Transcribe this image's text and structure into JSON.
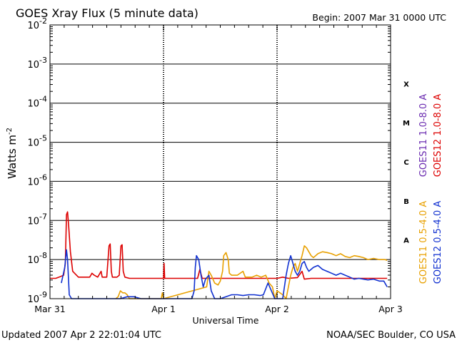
{
  "chart_data": {
    "type": "line",
    "title": "GOES Xray Flux (5 minute data)",
    "begin_label": "Begin:  2007 Mar 31 0000 UTC",
    "xlabel": "Universal Time",
    "ylabel": "Watts m",
    "ylabel_exp": "-2",
    "y_scale": "log",
    "ylim_exp": [
      -9,
      -2
    ],
    "y_ticks": [
      {
        "exp": "-2"
      },
      {
        "exp": "-3"
      },
      {
        "exp": "-4"
      },
      {
        "exp": "-5"
      },
      {
        "exp": "-6"
      },
      {
        "exp": "-7"
      },
      {
        "exp": "-8"
      },
      {
        "exp": "-9"
      }
    ],
    "x_ticks": [
      "Mar 31",
      "Apr 1",
      "Apr 2",
      "Apr 3"
    ],
    "xlim_days": [
      0,
      3
    ],
    "flare_classes": [
      "X",
      "M",
      "C",
      "B",
      "A"
    ],
    "updated_label": "Updated 2007 Apr  2 22:01:04 UTC",
    "source_label": "NOAA/SEC Boulder, CO USA",
    "colors": {
      "goes11_long": "#6a2bb0",
      "goes12_long": "#dd0000",
      "goes11_short": "#e8a000",
      "goes12_short": "#1030d0",
      "grid": "#000000"
    },
    "series": [
      {
        "name": "GOES11 1.0-8.0 A",
        "color": "#6a2bb0",
        "points": []
      },
      {
        "name": "GOES12 1.0-8.0 A",
        "color": "#dd0000",
        "points": [
          [
            0.0,
            -8.48
          ],
          [
            0.05,
            -8.48
          ],
          [
            0.08,
            -8.45
          ],
          [
            0.12,
            -8.4
          ],
          [
            0.135,
            -8.1
          ],
          [
            0.145,
            -6.85
          ],
          [
            0.155,
            -6.78
          ],
          [
            0.165,
            -7.15
          ],
          [
            0.18,
            -7.8
          ],
          [
            0.2,
            -8.3
          ],
          [
            0.25,
            -8.45
          ],
          [
            0.3,
            -8.45
          ],
          [
            0.35,
            -8.45
          ],
          [
            0.37,
            -8.35
          ],
          [
            0.39,
            -8.4
          ],
          [
            0.42,
            -8.45
          ],
          [
            0.45,
            -8.3
          ],
          [
            0.46,
            -8.45
          ],
          [
            0.5,
            -8.45
          ],
          [
            0.52,
            -7.65
          ],
          [
            0.53,
            -7.6
          ],
          [
            0.54,
            -8.3
          ],
          [
            0.55,
            -8.45
          ],
          [
            0.59,
            -8.45
          ],
          [
            0.61,
            -8.4
          ],
          [
            0.625,
            -7.65
          ],
          [
            0.635,
            -7.62
          ],
          [
            0.645,
            -8.3
          ],
          [
            0.66,
            -8.45
          ],
          [
            0.7,
            -8.48
          ],
          [
            1.0,
            -8.48
          ],
          [
            1.005,
            -8.1
          ],
          [
            1.01,
            -8.48
          ],
          [
            1.3,
            -8.48
          ],
          [
            1.32,
            -8.25
          ],
          [
            1.34,
            -8.48
          ],
          [
            1.5,
            -8.48
          ],
          [
            1.7,
            -8.48
          ],
          [
            1.95,
            -8.48
          ],
          [
            2.0,
            -8.48
          ],
          [
            2.05,
            -8.45
          ],
          [
            2.1,
            -8.48
          ],
          [
            2.18,
            -8.46
          ],
          [
            2.22,
            -8.3
          ],
          [
            2.24,
            -8.5
          ],
          [
            2.3,
            -8.48
          ],
          [
            2.4,
            -8.48
          ],
          [
            2.5,
            -8.48
          ],
          [
            2.6,
            -8.48
          ],
          [
            2.7,
            -8.48
          ],
          [
            2.8,
            -8.48
          ],
          [
            2.9,
            -8.48
          ],
          [
            2.97,
            -8.48
          ]
        ]
      },
      {
        "name": "GOES11 0.5-4.0 A",
        "color": "#e8a000",
        "points": [
          [
            0.58,
            -9.2
          ],
          [
            0.6,
            -8.95
          ],
          [
            0.62,
            -8.8
          ],
          [
            0.64,
            -8.85
          ],
          [
            0.66,
            -8.85
          ],
          [
            0.68,
            -8.9
          ],
          [
            0.7,
            -9.2
          ],
          [
            0.98,
            -9.2
          ],
          [
            0.99,
            -8.85
          ],
          [
            1.0,
            -9.2
          ],
          [
            1.38,
            -8.7
          ],
          [
            1.4,
            -8.3
          ],
          [
            1.42,
            -8.4
          ],
          [
            1.45,
            -8.6
          ],
          [
            1.48,
            -8.65
          ],
          [
            1.5,
            -8.55
          ],
          [
            1.52,
            -8.3
          ],
          [
            1.53,
            -7.9
          ],
          [
            1.55,
            -7.82
          ],
          [
            1.57,
            -8.0
          ],
          [
            1.58,
            -8.35
          ],
          [
            1.6,
            -8.4
          ],
          [
            1.65,
            -8.4
          ],
          [
            1.7,
            -8.3
          ],
          [
            1.72,
            -8.45
          ],
          [
            1.78,
            -8.45
          ],
          [
            1.82,
            -8.4
          ],
          [
            1.86,
            -8.45
          ],
          [
            1.9,
            -8.4
          ],
          [
            1.93,
            -8.6
          ],
          [
            1.96,
            -8.7
          ],
          [
            1.98,
            -9.1
          ],
          [
            2.0,
            -8.8
          ],
          [
            2.05,
            -8.9
          ],
          [
            2.08,
            -9.1
          ],
          [
            2.1,
            -8.7
          ],
          [
            2.12,
            -8.4
          ],
          [
            2.14,
            -8.2
          ],
          [
            2.16,
            -8.1
          ],
          [
            2.18,
            -8.3
          ],
          [
            2.2,
            -8.1
          ],
          [
            2.22,
            -7.9
          ],
          [
            2.24,
            -7.65
          ],
          [
            2.26,
            -7.7
          ],
          [
            2.28,
            -7.8
          ],
          [
            2.3,
            -7.9
          ],
          [
            2.32,
            -7.95
          ],
          [
            2.34,
            -7.9
          ],
          [
            2.36,
            -7.85
          ],
          [
            2.4,
            -7.8
          ],
          [
            2.44,
            -7.82
          ],
          [
            2.48,
            -7.85
          ],
          [
            2.52,
            -7.9
          ],
          [
            2.56,
            -7.85
          ],
          [
            2.6,
            -7.92
          ],
          [
            2.64,
            -7.95
          ],
          [
            2.68,
            -7.9
          ],
          [
            2.72,
            -7.92
          ],
          [
            2.76,
            -7.95
          ],
          [
            2.8,
            -8.0
          ],
          [
            2.85,
            -7.97
          ],
          [
            2.9,
            -8.0
          ],
          [
            2.95,
            -8.0
          ],
          [
            2.97,
            -8.02
          ]
        ]
      },
      {
        "name": "GOES12 0.5-4.0 A",
        "color": "#1030d0",
        "points": [
          [
            0.1,
            -8.6
          ],
          [
            0.13,
            -8.2
          ],
          [
            0.145,
            -7.75
          ],
          [
            0.155,
            -8.0
          ],
          [
            0.17,
            -8.9
          ],
          [
            0.19,
            -9.2
          ],
          [
            0.25,
            -9.2
          ],
          [
            0.5,
            -9.2
          ],
          [
            0.52,
            -9.1
          ],
          [
            0.56,
            -9.05
          ],
          [
            0.62,
            -9.0
          ],
          [
            0.68,
            -8.95
          ],
          [
            0.74,
            -8.95
          ],
          [
            0.8,
            -9.0
          ],
          [
            0.85,
            -9.05
          ],
          [
            0.88,
            -9.2
          ],
          [
            1.1,
            -9.2
          ],
          [
            1.2,
            -9.15
          ],
          [
            1.25,
            -9.05
          ],
          [
            1.27,
            -8.8
          ],
          [
            1.28,
            -8.2
          ],
          [
            1.29,
            -7.9
          ],
          [
            1.31,
            -8.0
          ],
          [
            1.33,
            -8.4
          ],
          [
            1.35,
            -8.7
          ],
          [
            1.37,
            -8.5
          ],
          [
            1.4,
            -8.4
          ],
          [
            1.42,
            -8.8
          ],
          [
            1.45,
            -9.05
          ],
          [
            1.5,
            -9.0
          ],
          [
            1.55,
            -8.95
          ],
          [
            1.6,
            -8.9
          ],
          [
            1.65,
            -8.9
          ],
          [
            1.7,
            -8.92
          ],
          [
            1.75,
            -8.9
          ],
          [
            1.8,
            -8.9
          ],
          [
            1.85,
            -8.92
          ],
          [
            1.88,
            -8.9
          ],
          [
            1.92,
            -8.6
          ],
          [
            1.95,
            -8.8
          ],
          [
            1.98,
            -9.2
          ],
          [
            2.05,
            -9.0
          ],
          [
            2.08,
            -8.4
          ],
          [
            2.1,
            -8.1
          ],
          [
            2.12,
            -7.9
          ],
          [
            2.14,
            -8.1
          ],
          [
            2.16,
            -8.3
          ],
          [
            2.18,
            -8.4
          ],
          [
            2.2,
            -8.3
          ],
          [
            2.22,
            -8.1
          ],
          [
            2.24,
            -8.05
          ],
          [
            2.26,
            -8.2
          ],
          [
            2.28,
            -8.3
          ],
          [
            2.32,
            -8.2
          ],
          [
            2.36,
            -8.15
          ],
          [
            2.4,
            -8.25
          ],
          [
            2.44,
            -8.3
          ],
          [
            2.48,
            -8.35
          ],
          [
            2.52,
            -8.4
          ],
          [
            2.56,
            -8.35
          ],
          [
            2.6,
            -8.4
          ],
          [
            2.64,
            -8.45
          ],
          [
            2.68,
            -8.5
          ],
          [
            2.72,
            -8.48
          ],
          [
            2.76,
            -8.5
          ],
          [
            2.8,
            -8.52
          ],
          [
            2.85,
            -8.5
          ],
          [
            2.9,
            -8.55
          ],
          [
            2.94,
            -8.55
          ],
          [
            2.97,
            -8.7
          ]
        ]
      }
    ],
    "legend_placement": "right-vertical"
  }
}
